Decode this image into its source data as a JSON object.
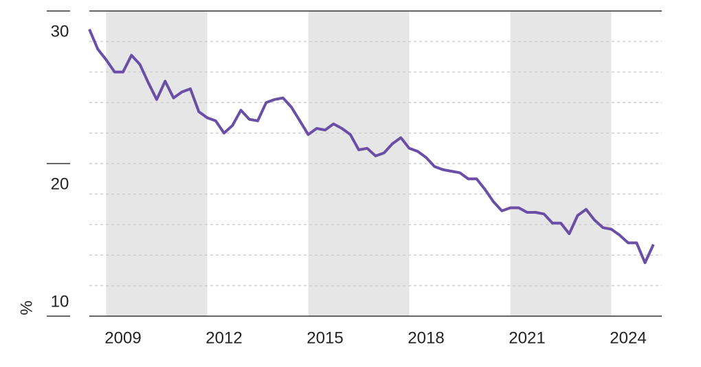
{
  "chart_data": {
    "type": "line",
    "y_label": "%",
    "x": [
      2008.5,
      2008.75,
      2009,
      2009.25,
      2009.5,
      2009.75,
      2010,
      2010.25,
      2010.5,
      2010.75,
      2011,
      2011.25,
      2011.5,
      2011.75,
      2012,
      2012.25,
      2012.5,
      2012.75,
      2013,
      2013.25,
      2013.5,
      2013.75,
      2014,
      2014.25,
      2014.5,
      2014.75,
      2015,
      2015.25,
      2015.5,
      2015.75,
      2016,
      2016.25,
      2016.5,
      2016.75,
      2017,
      2017.25,
      2017.5,
      2017.75,
      2018,
      2018.25,
      2018.5,
      2018.75,
      2019,
      2019.25,
      2019.5,
      2019.75,
      2020,
      2020.25,
      2020.5,
      2020.75,
      2021,
      2021.25,
      2021.5,
      2021.75,
      2022,
      2022.25,
      2022.5,
      2022.75,
      2023,
      2023.25,
      2023.5,
      2023.75,
      2024,
      2024.25,
      2024.5,
      2024.75,
      2025,
      2025.25
    ],
    "series": [
      {
        "color": "#6b4ea6",
        "values": [
          28.8,
          27.5,
          26.8,
          26.0,
          26.0,
          27.1,
          26.5,
          25.3,
          24.2,
          25.4,
          24.3,
          24.7,
          24.9,
          23.4,
          23.0,
          22.8,
          22.0,
          22.5,
          23.5,
          22.9,
          22.8,
          24.0,
          24.2,
          24.3,
          23.7,
          22.8,
          21.9,
          22.3,
          22.2,
          22.6,
          22.3,
          21.9,
          20.9,
          21.0,
          20.5,
          20.7,
          21.3,
          21.7,
          21.0,
          20.8,
          20.4,
          19.8,
          19.6,
          19.5,
          19.4,
          19.0,
          19.0,
          18.3,
          17.5,
          16.9,
          17.1,
          17.1,
          16.8,
          16.8,
          16.7,
          16.1,
          16.1,
          15.4,
          16.6,
          17.0,
          16.3,
          15.8,
          15.7,
          15.3,
          14.8,
          14.8,
          13.5,
          14.7
        ]
      }
    ],
    "shaded_periods": [
      [
        2009,
        2012
      ],
      [
        2015,
        2018
      ],
      [
        2021,
        2024
      ]
    ],
    "band_color": "#e6e6e6",
    "xlim": [
      2008.5,
      2025.5
    ],
    "xticks": [
      {
        "value": 2009.5,
        "label": "2009"
      },
      {
        "value": 2012.5,
        "label": "2012"
      },
      {
        "value": 2015.5,
        "label": "2015"
      },
      {
        "value": 2018.5,
        "label": "2018"
      },
      {
        "value": 2021.5,
        "label": "2021"
      },
      {
        "value": 2024.5,
        "label": "2024"
      }
    ],
    "ylim": [
      10,
      30
    ],
    "yticks": [
      10,
      20,
      30
    ],
    "grid_yticks": [
      12,
      14,
      16,
      18,
      20,
      22,
      24,
      26,
      28
    ],
    "grid": true
  }
}
